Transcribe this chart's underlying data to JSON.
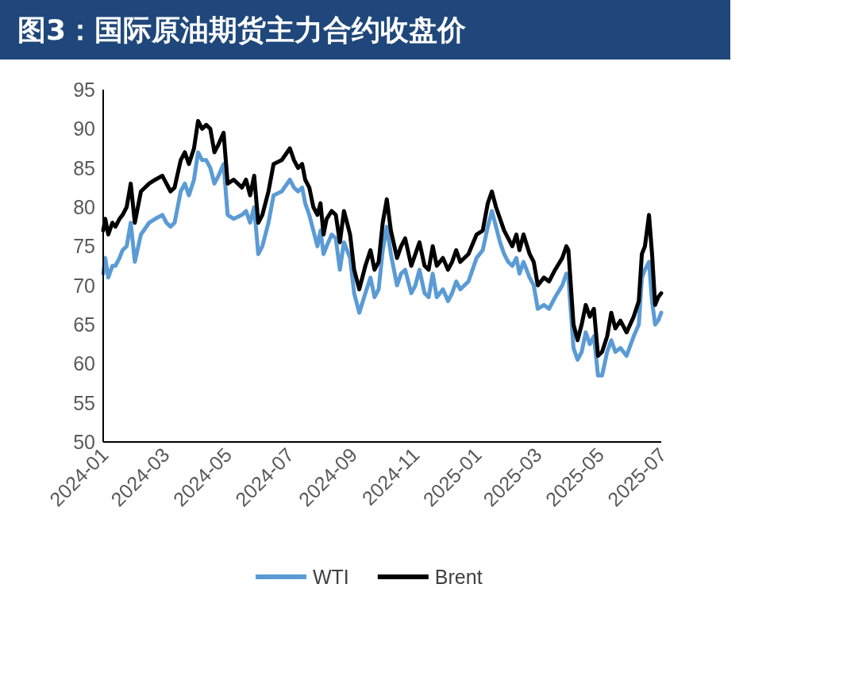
{
  "chart_data": {
    "type": "line",
    "title": "图3：国际原油期货主力合约收盘价",
    "x": [
      "2024-01-01",
      "2024-01-03",
      "2024-01-06",
      "2024-01-10",
      "2024-01-13",
      "2024-01-17",
      "2024-01-20",
      "2024-01-24",
      "2024-01-28",
      "2024-02-01",
      "2024-02-07",
      "2024-02-15",
      "2024-02-21",
      "2024-02-28",
      "2024-03-03",
      "2024-03-07",
      "2024-03-11",
      "2024-03-17",
      "2024-03-21",
      "2024-03-25",
      "2024-03-30",
      "2024-04-03",
      "2024-04-07",
      "2024-04-11",
      "2024-04-15",
      "2024-04-19",
      "2024-04-23",
      "2024-04-28",
      "2024-05-02",
      "2024-05-08",
      "2024-05-16",
      "2024-05-20",
      "2024-05-24",
      "2024-05-28",
      "2024-06-01",
      "2024-06-05",
      "2024-06-11",
      "2024-06-16",
      "2024-06-24",
      "2024-07-02",
      "2024-07-06",
      "2024-07-10",
      "2024-07-14",
      "2024-07-17",
      "2024-07-21",
      "2024-07-25",
      "2024-07-29",
      "2024-08-01",
      "2024-08-04",
      "2024-08-07",
      "2024-08-12",
      "2024-08-16",
      "2024-08-20",
      "2024-08-24",
      "2024-08-27",
      "2024-08-30",
      "2024-09-03",
      "2024-09-08",
      "2024-09-14",
      "2024-09-19",
      "2024-09-23",
      "2024-09-27",
      "2024-10-01",
      "2024-10-05",
      "2024-10-09",
      "2024-10-15",
      "2024-10-19",
      "2024-10-23",
      "2024-10-29",
      "2024-11-02",
      "2024-11-06",
      "2024-11-11",
      "2024-11-15",
      "2024-11-19",
      "2024-11-23",
      "2024-11-29",
      "2024-12-04",
      "2024-12-08",
      "2024-12-12",
      "2024-12-16",
      "2024-12-24",
      "2025-01-01",
      "2025-01-07",
      "2025-01-12",
      "2025-01-16",
      "2025-01-20",
      "2025-01-24",
      "2025-01-28",
      "2025-02-01",
      "2025-02-05",
      "2025-02-09",
      "2025-02-12",
      "2025-02-16",
      "2025-02-22",
      "2025-02-26",
      "2025-03-02",
      "2025-03-08",
      "2025-03-13",
      "2025-03-19",
      "2025-03-26",
      "2025-03-30",
      "2025-04-01",
      "2025-04-06",
      "2025-04-10",
      "2025-04-14",
      "2025-04-18",
      "2025-04-22",
      "2025-04-26",
      "2025-04-30",
      "2025-05-04",
      "2025-05-09",
      "2025-05-13",
      "2025-05-17",
      "2025-05-22",
      "2025-05-28",
      "2025-06-04",
      "2025-06-09",
      "2025-06-12",
      "2025-06-15",
      "2025-06-19",
      "2025-06-22",
      "2025-06-25",
      "2025-06-28",
      "2025-07-01"
    ],
    "series": [
      {
        "name": "WTI",
        "color": "#5b9bd5",
        "values": [
          71.5,
          73.5,
          71,
          72.5,
          72.5,
          73.5,
          74.5,
          75,
          78,
          73,
          76.5,
          78,
          78.5,
          79,
          78,
          77.5,
          78,
          82,
          83,
          81.5,
          83.5,
          87,
          86,
          86,
          85,
          83,
          84,
          85.5,
          79,
          78.5,
          79,
          79.5,
          78,
          80,
          74,
          75,
          78,
          81.5,
          82,
          83.5,
          82.5,
          82,
          82.5,
          80.5,
          79,
          77,
          75,
          77,
          74,
          75,
          76.5,
          76,
          72,
          75.5,
          74.5,
          73.5,
          69,
          66.5,
          69,
          71,
          68.5,
          69.5,
          74.5,
          77.5,
          74,
          70,
          71.5,
          72,
          69,
          70,
          72,
          69,
          68.5,
          71.5,
          68.5,
          69.5,
          68,
          69,
          70.5,
          69.5,
          70.5,
          73.5,
          74.5,
          77.5,
          79.5,
          77.5,
          75.5,
          74,
          73,
          72.5,
          73.5,
          71.5,
          73,
          71,
          70,
          67,
          67.5,
          67,
          68.5,
          70,
          71.5,
          71,
          62,
          60.5,
          61.5,
          64,
          62.5,
          63.5,
          58.5,
          58.5,
          61.5,
          63,
          61.5,
          62,
          61,
          63.5,
          65,
          71,
          72,
          73,
          68,
          65,
          65.5,
          66.5
        ]
      },
      {
        "name": "Brent",
        "color": "#000000",
        "values": [
          77,
          78.5,
          76.5,
          78,
          77.5,
          78.5,
          79,
          80,
          83,
          78,
          82,
          83,
          83.5,
          84,
          83,
          82,
          82.5,
          86,
          87,
          85.5,
          87.5,
          91,
          90,
          90.5,
          90,
          87,
          88,
          89.5,
          83,
          83.5,
          82.5,
          83.5,
          81.5,
          84,
          78,
          79,
          82,
          85.5,
          86,
          87.5,
          86,
          85,
          85.5,
          83.5,
          82.5,
          80,
          79,
          80.5,
          76.5,
          78.5,
          79.5,
          79,
          75.5,
          79.5,
          78,
          76.5,
          72,
          69.5,
          72.5,
          74.5,
          72,
          73,
          78,
          81,
          77,
          73.5,
          75,
          76,
          72.5,
          74,
          75.5,
          72.5,
          72,
          75,
          72.5,
          73.5,
          72,
          73,
          74.5,
          73,
          74,
          76.5,
          77,
          80.5,
          82,
          80,
          78.5,
          77,
          76,
          75,
          76.5,
          74.5,
          76.5,
          74,
          73,
          70,
          71,
          70.5,
          72,
          73.5,
          75,
          74.5,
          65,
          63,
          65,
          67.5,
          66,
          67,
          61,
          61.5,
          63.5,
          66.5,
          64.5,
          65.5,
          64,
          66,
          68,
          74,
          75,
          79,
          74,
          67.5,
          68.5,
          69
        ]
      }
    ],
    "xlim": [
      "2024-01-01",
      "2025-07-01"
    ],
    "xticks": [
      {
        "value": "2024-01-01",
        "label": "2024-01"
      },
      {
        "value": "2024-03-01",
        "label": "2024-03"
      },
      {
        "value": "2024-05-01",
        "label": "2024-05"
      },
      {
        "value": "2024-07-01",
        "label": "2024-07"
      },
      {
        "value": "2024-09-01",
        "label": "2024-09"
      },
      {
        "value": "2024-11-01",
        "label": "2024-11"
      },
      {
        "value": "2025-01-01",
        "label": "2025-01"
      },
      {
        "value": "2025-03-01",
        "label": "2025-03"
      },
      {
        "value": "2025-05-01",
        "label": "2025-05"
      },
      {
        "value": "2025-07-01",
        "label": "2025-07"
      }
    ],
    "ylim": [
      50,
      95
    ],
    "yticks": [
      50,
      55,
      60,
      65,
      70,
      75,
      80,
      85,
      90,
      95
    ],
    "grid": false,
    "legend": "bottom",
    "marker": "none",
    "line_style": "solid"
  }
}
